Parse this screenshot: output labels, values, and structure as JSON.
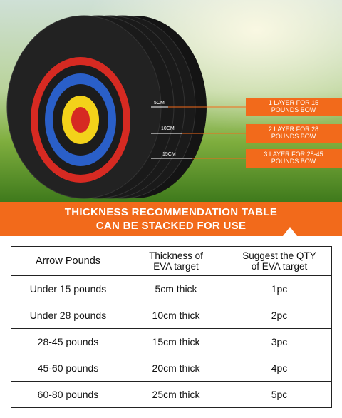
{
  "image": {
    "measurements": [
      "5CM",
      "10CM",
      "15CM"
    ],
    "callouts": [
      [
        "1 LAYER FOR 15",
        "POUNDS BOW"
      ],
      [
        "2 LAYER FOR 28",
        "POUNDS BOW"
      ],
      [
        "3 LAYER FOR 28-45",
        "POUNDS BOW"
      ]
    ]
  },
  "banner": {
    "lines": [
      "THICKNESS RECOMMENDATION TABLE",
      "CAN BE STACKED FOR USE"
    ]
  },
  "table": {
    "header": [
      [
        "Arrow Pounds"
      ],
      [
        "Thickness of",
        "EVA target"
      ],
      [
        "Suggest the QTY",
        "of EVA target"
      ]
    ],
    "rows": [
      [
        "Under 15 pounds",
        "5cm thick",
        "1pc"
      ],
      [
        "Under 28 pounds",
        "10cm thick",
        "2pc"
      ],
      [
        "28-45 pounds",
        "15cm thick",
        "3pc"
      ],
      [
        "45-60 pounds",
        "20cm thick",
        "4pc"
      ],
      [
        "60-80 pounds",
        "25cm thick",
        "5pc"
      ]
    ]
  }
}
